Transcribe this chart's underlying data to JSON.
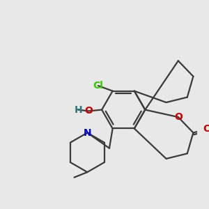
{
  "bg_color": "#e8e8e8",
  "bond_color": "#3a3a3a",
  "bond_width": 1.6,
  "atom_colors": {
    "Cl": "#33cc00",
    "O": "#cc0000",
    "H": "#337777",
    "N": "#0000cc"
  },
  "figsize": [
    3.0,
    3.0
  ],
  "dpi": 100
}
